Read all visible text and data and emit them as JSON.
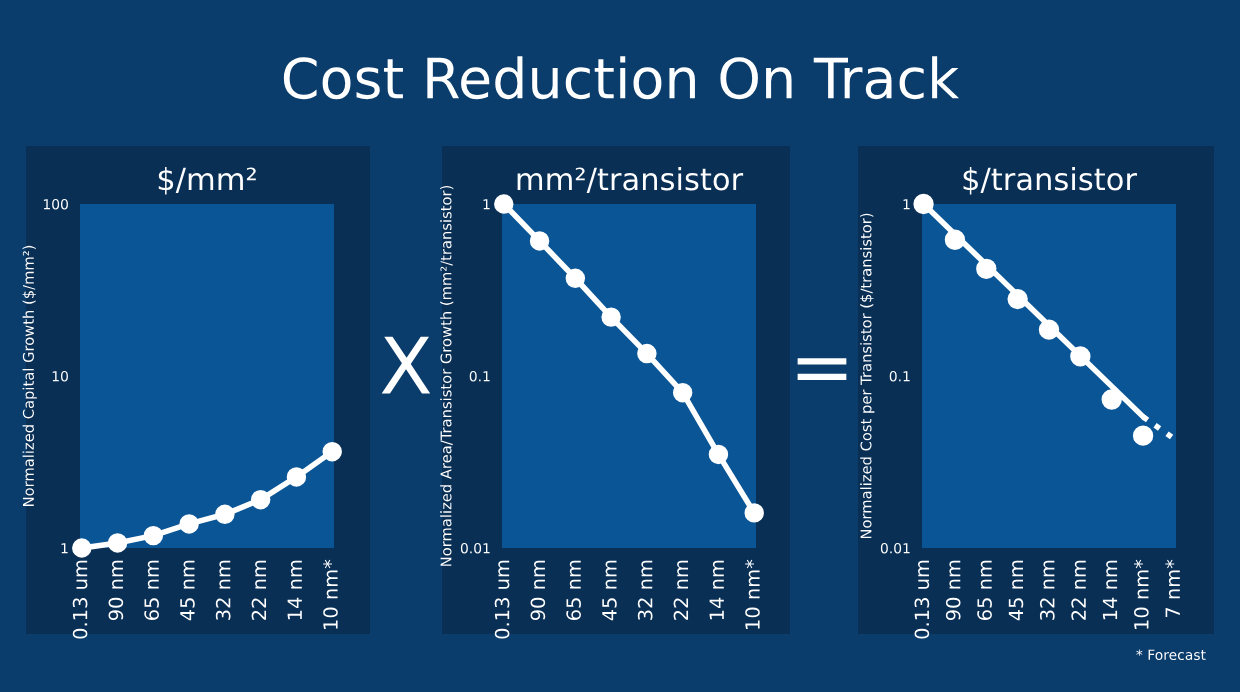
{
  "chart_data": [
    {
      "type": "line",
      "title": "$/mm²",
      "ylabel": "Normalized Capital Growth ($/mm²)",
      "categories": [
        "0.13 um",
        "90 nm",
        "65 nm",
        "45 nm",
        "32 nm",
        "22 nm",
        "14 nm",
        "10 nm*"
      ],
      "log": true,
      "ylim": [
        1,
        100
      ],
      "yticks": [
        1,
        10,
        100
      ],
      "marker": "circle",
      "grid": false,
      "legend": false,
      "series": [
        {
          "color": "#ffffff",
          "values": [
            1.0,
            1.07,
            1.18,
            1.38,
            1.57,
            1.91,
            2.59,
            3.63
          ]
        }
      ],
      "annotations": [
        "Cost Reduction On Track",
        "X"
      ]
    },
    {
      "type": "line",
      "title": "mm²/transistor",
      "ylabel": "Normalized Area/Transistor Growth (mm²/transistor)",
      "categories": [
        "0.13 um",
        "90 nm",
        "65 nm",
        "45 nm",
        "32 nm",
        "22 nm",
        "14 nm",
        "10 nm*"
      ],
      "log": true,
      "ylim": [
        0.01,
        1
      ],
      "yticks": [
        0.01,
        0.1,
        1
      ],
      "marker": "circle",
      "grid": false,
      "legend": false,
      "series": [
        {
          "color": "#ffffff",
          "values": [
            1.0,
            0.61,
            0.37,
            0.22,
            0.135,
            0.08,
            0.035,
            0.016
          ]
        }
      ],
      "annotations": [
        "="
      ]
    },
    {
      "type": "scatter",
      "title": "$/transistor",
      "ylabel": "Normalized Cost per Transistor ($/transistor)",
      "categories": [
        "0.13 um",
        "90 nm",
        "65 nm",
        "45 nm",
        "32 nm",
        "22 nm",
        "14 nm",
        "10 nm*",
        "7 nm*"
      ],
      "log": true,
      "ylim": [
        0.01,
        1
      ],
      "yticks": [
        0.01,
        0.1,
        1
      ],
      "marker": "circle",
      "grid": false,
      "legend": false,
      "series": [
        {
          "color": "#ffffff",
          "values": [
            1.0,
            0.62,
            0.42,
            0.28,
            0.186,
            0.13,
            0.073,
            0.045,
            null
          ]
        },
        {
          "type": "line",
          "color": "#ffffff",
          "marker": "none",
          "line_style": "solid",
          "x": [
            "0.13 um",
            "10 nm*"
          ],
          "values": [
            1.0,
            0.058
          ]
        },
        {
          "type": "line",
          "color": "#ffffff",
          "marker": "none",
          "line_style": "dotted",
          "x": [
            "10 nm*",
            "7 nm*"
          ],
          "values": [
            0.058,
            0.043
          ]
        }
      ],
      "annotations": [
        "* Forecast"
      ]
    }
  ]
}
